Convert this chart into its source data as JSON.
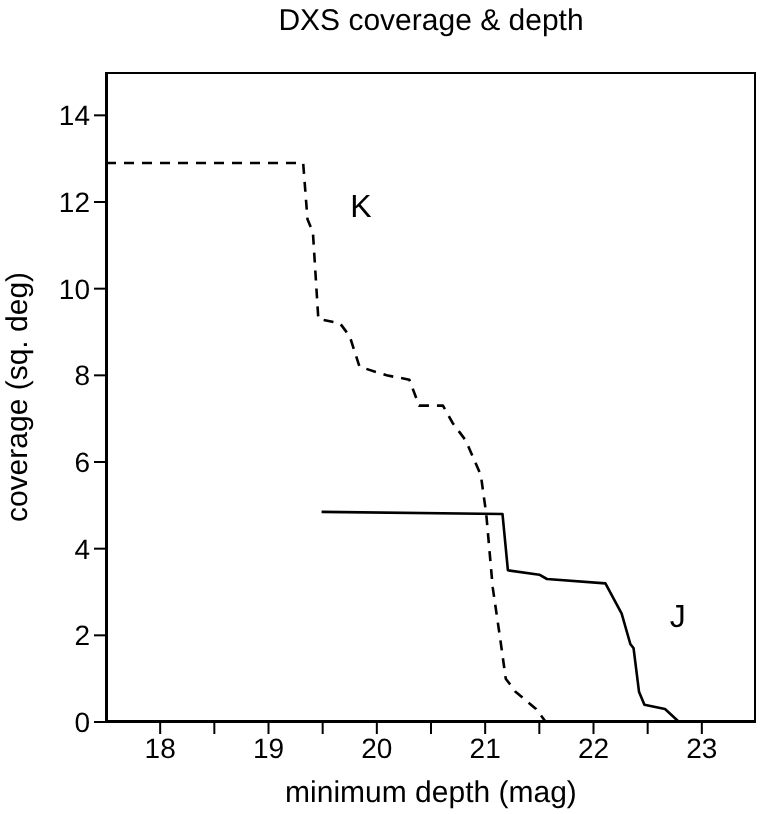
{
  "chart_data": {
    "type": "line",
    "title": "DXS coverage & depth",
    "xlabel": "minimum depth (mag)",
    "ylabel": "coverage (sq. deg)",
    "xlim": [
      17.5,
      23.5
    ],
    "xticks": [
      18,
      {
        "value": 18.5,
        "label": null
      },
      19,
      {
        "value": 19.5,
        "label": null
      },
      20,
      {
        "value": 20.5,
        "label": null
      },
      21,
      {
        "value": 21.5,
        "label": null
      },
      22,
      {
        "value": 22.5,
        "label": null
      },
      23
    ],
    "ylim": [
      0,
      15
    ],
    "yticks": [
      0,
      2,
      4,
      6,
      8,
      10,
      12,
      14
    ],
    "marker": "none",
    "series": [
      {
        "name": "K",
        "color": "#000000",
        "line_style": "dashed",
        "x": [
          17.5,
          19.32,
          19.36,
          19.41,
          19.46,
          19.66,
          19.75,
          19.84,
          20.09,
          20.3,
          20.39,
          20.61,
          20.7,
          20.82,
          20.96,
          21.01,
          21.07,
          21.14,
          21.19,
          21.28,
          21.47,
          21.56,
          21.8,
          21.93
        ],
        "values": [
          12.9,
          12.9,
          11.6,
          11.3,
          9.3,
          9.2,
          8.9,
          8.2,
          8.0,
          7.9,
          7.3,
          7.3,
          6.9,
          6.5,
          5.7,
          4.8,
          3.1,
          1.9,
          1.0,
          0.7,
          0.3,
          0.0,
          0.0,
          0.0
        ]
      },
      {
        "name": "J",
        "color": "#000000",
        "line_style": "solid",
        "x": [
          19.49,
          21.16,
          21.21,
          21.5,
          21.57,
          22.11,
          22.26,
          22.34,
          22.37,
          22.42,
          22.47,
          22.66,
          22.79
        ],
        "values": [
          4.85,
          4.8,
          3.5,
          3.4,
          3.3,
          3.2,
          2.5,
          1.8,
          1.7,
          0.7,
          0.4,
          0.3,
          0.0
        ]
      }
    ]
  }
}
